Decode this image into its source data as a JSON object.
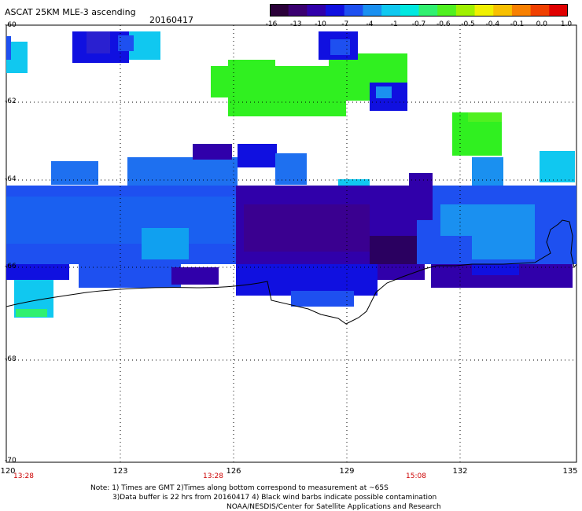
{
  "header": {
    "title": "ASCAT 25KM MLE-3 ascending",
    "date": "20160417"
  },
  "colorbar": {
    "colors": [
      "#2a0038",
      "#3a0070",
      "#3000aa",
      "#1010e0",
      "#1e50f0",
      "#1a90f0",
      "#10c8f0",
      "#00e8e0",
      "#30f070",
      "#50f020",
      "#a0f000",
      "#f0f000",
      "#f8c000",
      "#f88000",
      "#f04000",
      "#e00000"
    ],
    "labels": [
      "-16",
      "-13",
      "-10",
      "-7",
      "-4",
      "-1",
      "-0.7",
      "-0.6",
      "-0.5",
      "-0.4",
      "-0.1",
      "0.0",
      "1.0"
    ]
  },
  "axes": {
    "lat_labels": [
      "-60",
      "-62",
      "-64",
      "-66",
      "-68",
      "-70"
    ],
    "lon_labels": [
      "120",
      "123",
      "126",
      "129",
      "132",
      "135"
    ],
    "time_labels": [
      "13:28",
      "13:28",
      "15:08"
    ]
  },
  "map_layers": [
    {
      "name": "ascat-swath",
      "colormap": "colorbar"
    },
    {
      "name": "antarctic-coastline",
      "color": "#000000"
    }
  ],
  "notes": {
    "line1": "Note: 1) Times are GMT 2)Times along bottom correspond to measurement at ~65S",
    "line2": "3)Data buffer is 22 hrs from 20160417 4) Black wind barbs indicate possible contamination",
    "line3": "NOAA/NESDIS/Center for Satellite Applications and Research"
  }
}
